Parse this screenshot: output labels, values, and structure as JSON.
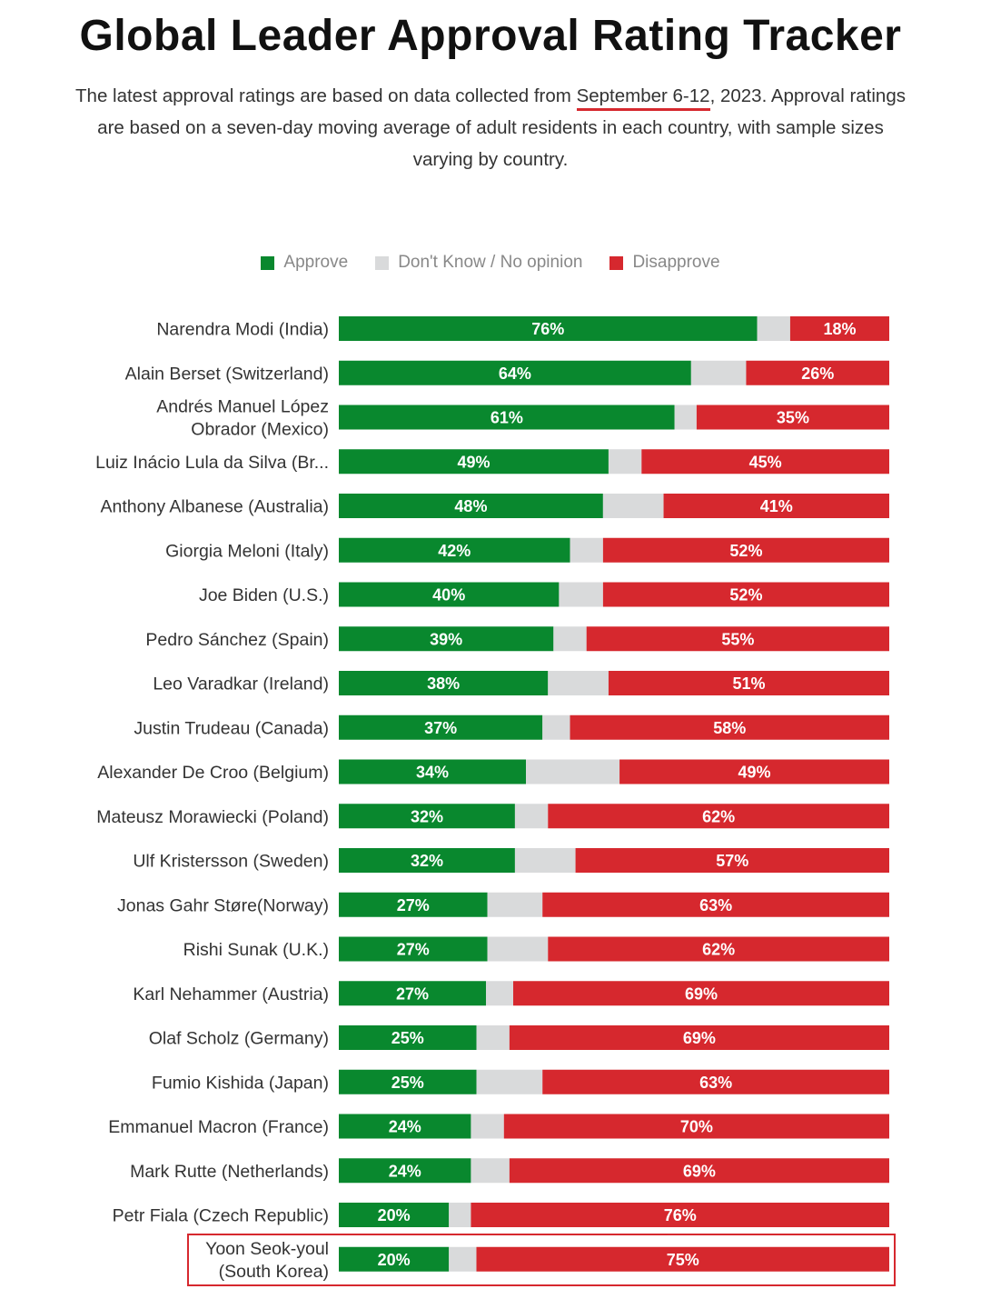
{
  "header": {
    "title": "Global Leader Approval Rating Tracker",
    "subtitle_pre": "The latest approval ratings are based on data collected from ",
    "subtitle_date": "September 6-12",
    "subtitle_post": ", 2023. Approval ratings are based on a seven-day moving average of adult residents in each country, with sample sizes varying by country."
  },
  "legend": {
    "approve": "Approve",
    "dont_know": "Don't Know / No opinion",
    "disapprove": "Disapprove"
  },
  "colors": {
    "approve": "#09882e",
    "dont_know": "#d9dadb",
    "disapprove": "#d6282e",
    "highlight": "#d6282e"
  },
  "chart_data": {
    "type": "bar",
    "orientation": "horizontal-stacked",
    "categories": [
      "Narendra Modi (India)",
      "Alain Berset (Switzerland)",
      "Andrés Manuel López Obrador (Mexico)",
      "Luiz Inácio Lula da Silva (Br...",
      "Anthony Albanese (Australia)",
      "Giorgia Meloni (Italy)",
      "Joe Biden (U.S.)",
      "Pedro Sánchez (Spain)",
      "Leo Varadkar (Ireland)",
      "Justin Trudeau (Canada)",
      "Alexander De Croo (Belgium)",
      "Mateusz Morawiecki (Poland)",
      "Ulf Kristersson (Sweden)",
      "Jonas Gahr Støre(Norway)",
      "Rishi Sunak (U.K.)",
      "Karl Nehammer (Austria)",
      "Olaf Scholz (Germany)",
      "Fumio Kishida (Japan)",
      "Emmanuel Macron (France)",
      "Mark Rutte (Netherlands)",
      "Petr Fiala (Czech Republic)",
      "Yoon Seok-youl (South Korea)"
    ],
    "label_lines": [
      [
        "Narendra Modi (India)"
      ],
      [
        "Alain Berset (Switzerland)"
      ],
      [
        "Andrés Manuel López",
        "Obrador (Mexico)"
      ],
      [
        "Luiz Inácio Lula da Silva (Br..."
      ],
      [
        "Anthony Albanese (Australia)"
      ],
      [
        "Giorgia Meloni (Italy)"
      ],
      [
        "Joe Biden (U.S.)"
      ],
      [
        "Pedro Sánchez (Spain)"
      ],
      [
        "Leo Varadkar (Ireland)"
      ],
      [
        "Justin Trudeau (Canada)"
      ],
      [
        "Alexander De Croo (Belgium)"
      ],
      [
        "Mateusz Morawiecki (Poland)"
      ],
      [
        "Ulf Kristersson (Sweden)"
      ],
      [
        "Jonas Gahr Støre(Norway)"
      ],
      [
        "Rishi Sunak (U.K.)"
      ],
      [
        "Karl Nehammer (Austria)"
      ],
      [
        "Olaf Scholz (Germany)"
      ],
      [
        "Fumio Kishida (Japan)"
      ],
      [
        "Emmanuel Macron (France)"
      ],
      [
        "Mark Rutte (Netherlands)"
      ],
      [
        "Petr Fiala (Czech Republic)"
      ],
      [
        "Yoon Seok-youl",
        "(South Korea)"
      ]
    ],
    "series": [
      {
        "name": "Approve",
        "values": [
          76,
          64,
          61,
          49,
          48,
          42,
          40,
          39,
          38,
          37,
          34,
          32,
          32,
          27,
          27,
          27,
          25,
          25,
          24,
          24,
          20,
          20
        ]
      },
      {
        "name": "Don't Know / No opinion",
        "values": [
          6,
          10,
          4,
          6,
          11,
          6,
          8,
          6,
          11,
          5,
          17,
          6,
          11,
          10,
          11,
          5,
          6,
          12,
          6,
          7,
          4,
          5
        ]
      },
      {
        "name": "Disapprove",
        "values": [
          18,
          26,
          35,
          45,
          41,
          52,
          52,
          55,
          51,
          58,
          49,
          62,
          57,
          63,
          62,
          69,
          69,
          63,
          70,
          69,
          76,
          75
        ]
      }
    ],
    "value_labels": {
      "approve": true,
      "dont_know": false,
      "disapprove": true,
      "suffix": "%"
    },
    "xlim": [
      0,
      100
    ],
    "highlighted_category": "Yoon Seok-youl (South Korea)"
  }
}
